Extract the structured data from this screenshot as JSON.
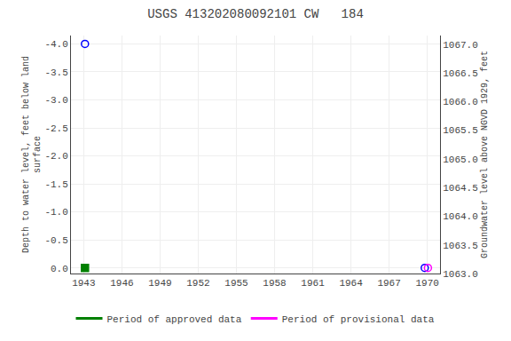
{
  "chart_data": {
    "type": "scatter",
    "title": "USGS 413202080092101 CW   184",
    "ylabel": "Depth to water level, feet below land\nsurface",
    "y2label": "Groundwater level above NGVD 1929, feet",
    "xlim": [
      1942,
      1971
    ],
    "xticks": [
      1943,
      1946,
      1949,
      1952,
      1955,
      1958,
      1961,
      1964,
      1967,
      1970
    ],
    "ylim": [
      0.1,
      -4.15
    ],
    "yticks": [
      {
        "value": 0.0,
        "label": "0.0"
      },
      -0.5,
      {
        "value": -1.0,
        "label": "-1.0"
      },
      -1.5,
      {
        "value": -2.0,
        "label": "-2.0"
      },
      -2.5,
      {
        "value": -3.0,
        "label": "-3.0"
      },
      -3.5,
      {
        "value": -4.0,
        "label": "-4.0"
      }
    ],
    "y2lim": [
      1063.0,
      1067.15
    ],
    "y2ticks": [
      {
        "value": 1063.0,
        "label": "1063.0"
      },
      1063.5,
      {
        "value": 1064.0,
        "label": "1064.0"
      },
      1064.5,
      {
        "value": 1065.0,
        "label": "1065.0"
      },
      1065.5,
      {
        "value": 1066.0,
        "label": "1066.0"
      },
      1066.5,
      {
        "value": 1067.0,
        "label": "1067.0"
      }
    ],
    "grid": true,
    "legend": "bottom",
    "series": [
      {
        "type": "scatter",
        "color": "#0000ff",
        "marker": "circle-open",
        "x": [
          1943.1,
          1969.8
        ],
        "values": [
          -4.0,
          0.0
        ]
      },
      {
        "type": "scatter",
        "color": "#008000",
        "marker": "square",
        "x": [
          1943.1
        ],
        "values": [
          0.0
        ]
      },
      {
        "type": "scatter",
        "color": "#ff00ff",
        "marker": "circle-open",
        "x": [
          1970.05
        ],
        "values": [
          0.0
        ]
      },
      {
        "type": "line",
        "name": "Period of approved data",
        "color": "#008000",
        "x": [],
        "values": []
      },
      {
        "type": "line",
        "name": "Period of provisional data",
        "color": "#ff00ff",
        "x": [],
        "values": []
      }
    ]
  }
}
